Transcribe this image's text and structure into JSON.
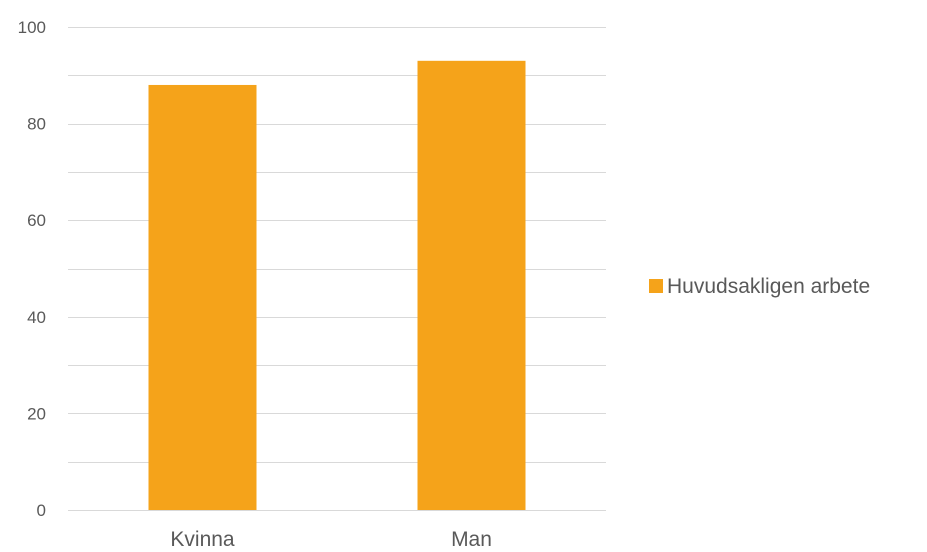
{
  "chart_data": {
    "type": "bar",
    "categories": [
      "Kvinna",
      "Man"
    ],
    "series": [
      {
        "name": "Huvudsakligen arbete",
        "values": [
          88,
          93
        ],
        "color": "#F5A31A"
      }
    ],
    "ylim": [
      0,
      100
    ],
    "yticks": [
      0,
      20,
      40,
      60,
      80,
      100
    ],
    "ytick_labels": [
      "0",
      "20",
      "40",
      "60",
      "80",
      "100"
    ],
    "minor_gridlines_step": 10,
    "grid": true,
    "legend": "right",
    "title": "",
    "xlabel": "",
    "ylabel": ""
  },
  "colors": {
    "gridline": "#D9D9D9",
    "axis_text": "#595959",
    "bar": "#F5A31A"
  }
}
